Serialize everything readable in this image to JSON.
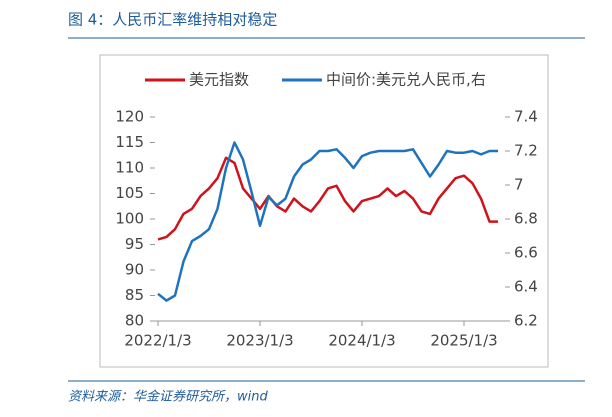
{
  "title": "图 4：人民币汇率维持相对稳定",
  "source": "资料来源：华金证券研究所，wind",
  "chart_data": {
    "type": "line",
    "x": [
      "2022/1/3",
      "2022/2/3",
      "2022/3/3",
      "2022/4/3",
      "2022/5/3",
      "2022/6/3",
      "2022/7/3",
      "2022/8/3",
      "2022/9/3",
      "2022/10/3",
      "2022/11/3",
      "2022/12/3",
      "2023/1/3",
      "2023/2/3",
      "2023/3/3",
      "2023/4/3",
      "2023/5/3",
      "2023/6/3",
      "2023/7/3",
      "2023/8/3",
      "2023/9/3",
      "2023/10/3",
      "2023/11/3",
      "2023/12/3",
      "2024/1/3",
      "2024/2/3",
      "2024/3/3",
      "2024/4/3",
      "2024/5/3",
      "2024/6/3",
      "2024/7/3",
      "2024/8/3",
      "2024/9/3",
      "2024/10/3",
      "2024/11/3",
      "2024/12/3",
      "2025/1/3",
      "2025/2/3",
      "2025/3/3",
      "2025/4/3",
      "2025/5/3"
    ],
    "series": [
      {
        "name": "美元指数",
        "color": "#d0121b",
        "values": [
          96,
          96.5,
          98,
          101,
          102,
          104.5,
          106,
          108,
          112,
          111,
          106,
          104,
          102,
          104.5,
          102.5,
          101.5,
          104,
          102.5,
          101.5,
          103.5,
          106,
          106.5,
          103.5,
          101.5,
          103.5,
          104,
          104.5,
          106,
          104.5,
          105.5,
          104,
          101.5,
          101,
          104,
          106,
          108,
          108.5,
          107,
          104,
          99.5,
          99.5
        ]
      },
      {
        "name": "中间价:美元兑人民币,右",
        "color": "#1e73be",
        "axis": "y2",
        "values": [
          6.36,
          6.32,
          6.35,
          6.55,
          6.67,
          6.7,
          6.74,
          6.86,
          7.1,
          7.25,
          7.15,
          6.96,
          6.76,
          6.93,
          6.88,
          6.92,
          7.05,
          7.12,
          7.15,
          7.2,
          7.2,
          7.21,
          7.16,
          7.1,
          7.17,
          7.19,
          7.2,
          7.2,
          7.2,
          7.2,
          7.21,
          7.13,
          7.05,
          7.12,
          7.2,
          7.19,
          7.19,
          7.2,
          7.18,
          7.2,
          7.2
        ]
      }
    ],
    "ylim": [
      80,
      120
    ],
    "yticks": [
      80,
      85,
      90,
      95,
      100,
      105,
      110,
      115,
      120
    ],
    "y2lim": [
      6.2,
      7.4
    ],
    "y2ticks": [
      6.2,
      6.4,
      6.6,
      6.8,
      7,
      7.2,
      7.4
    ],
    "legend": "top"
  }
}
